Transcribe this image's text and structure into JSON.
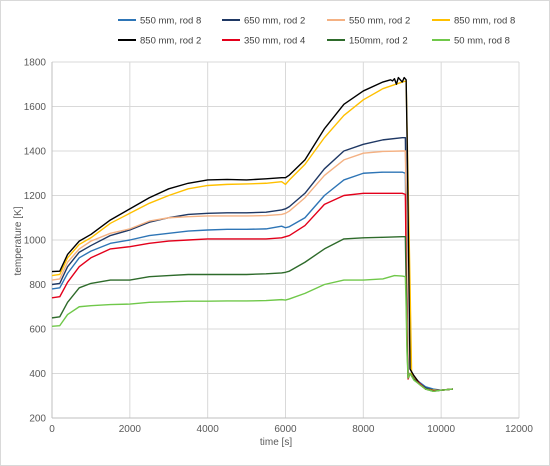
{
  "chart_data": {
    "type": "line",
    "title": "",
    "xlabel": "time [s]",
    "ylabel": "temperature [K]",
    "xlim": [
      0,
      12000
    ],
    "ylim": [
      200,
      1800
    ],
    "x_ticks": [
      0,
      2000,
      4000,
      6000,
      8000,
      10000,
      12000
    ],
    "y_ticks": [
      200,
      400,
      600,
      800,
      1000,
      1200,
      1400,
      1600,
      1800
    ],
    "x_tick_labels": [
      "0",
      "2000",
      "4000",
      "6000",
      "8000",
      "10000",
      "12000"
    ],
    "y_tick_labels": [
      "200",
      "400",
      "600",
      "800",
      "1000",
      "1200",
      "1400",
      "1600",
      "1800"
    ],
    "grid": true,
    "legend_position": "top",
    "series": [
      {
        "name": "550 mm, rod 8",
        "color": "#2E75B6",
        "x": [
          0,
          200,
          400,
          700,
          1000,
          1500,
          2000,
          2500,
          3000,
          3500,
          4000,
          4500,
          5000,
          5500,
          5900,
          6000,
          6100,
          6500,
          7000,
          7500,
          8000,
          8500,
          9000,
          9080,
          9100,
          9120,
          9150,
          9200,
          9300,
          9450,
          9600,
          9800,
          10000,
          10300
        ],
        "y": [
          780,
          785,
          850,
          920,
          950,
          985,
          1000,
          1020,
          1030,
          1040,
          1045,
          1048,
          1048,
          1050,
          1062,
          1055,
          1060,
          1100,
          1200,
          1270,
          1300,
          1305,
          1305,
          1300,
          1000,
          700,
          380,
          400,
          380,
          360,
          340,
          330,
          325,
          330
        ]
      },
      {
        "name": "650 mm, rod 2",
        "color": "#1F3864",
        "x": [
          0,
          200,
          400,
          700,
          1000,
          1500,
          2000,
          2500,
          3000,
          3500,
          4000,
          4500,
          5000,
          5500,
          5900,
          6000,
          6100,
          6500,
          7000,
          7500,
          8000,
          8500,
          9000,
          9080,
          9100,
          9120,
          9150,
          9200,
          9300,
          9450,
          9600,
          9800,
          10000,
          10300
        ],
        "y": [
          800,
          805,
          880,
          945,
          975,
          1020,
          1045,
          1080,
          1100,
          1115,
          1120,
          1122,
          1122,
          1125,
          1135,
          1140,
          1150,
          1210,
          1320,
          1400,
          1430,
          1450,
          1460,
          1460,
          1200,
          800,
          390,
          400,
          380,
          355,
          335,
          325,
          325,
          330
        ]
      },
      {
        "name": "550 mm, rod 2",
        "color": "#F4B183",
        "x": [
          0,
          200,
          400,
          700,
          1000,
          1500,
          2000,
          2500,
          3000,
          3500,
          4000,
          4500,
          5000,
          5500,
          5900,
          6000,
          6100,
          6500,
          7000,
          7500,
          8000,
          8500,
          9000,
          9080,
          9100,
          9120,
          9150,
          9200,
          9300,
          9450,
          9600,
          9800,
          10000,
          10300
        ],
        "y": [
          820,
          825,
          900,
          960,
          995,
          1030,
          1050,
          1085,
          1100,
          1105,
          1108,
          1108,
          1108,
          1110,
          1115,
          1120,
          1130,
          1190,
          1290,
          1360,
          1390,
          1398,
          1400,
          1400,
          1150,
          750,
          385,
          400,
          380,
          355,
          330,
          322,
          325,
          330
        ]
      },
      {
        "name": "850 mm, rod 8",
        "color": "#FFC000",
        "x": [
          0,
          200,
          400,
          700,
          1000,
          1500,
          2000,
          2500,
          3000,
          3500,
          4000,
          4500,
          5000,
          5500,
          5900,
          6000,
          6100,
          6500,
          7000,
          7500,
          8000,
          8500,
          9000,
          9100,
          9200,
          9240,
          9300,
          9450,
          9600,
          9800,
          10000,
          10300
        ],
        "y": [
          840,
          845,
          920,
          980,
          1010,
          1075,
          1120,
          1165,
          1200,
          1230,
          1245,
          1250,
          1252,
          1255,
          1262,
          1250,
          1270,
          1340,
          1460,
          1560,
          1630,
          1680,
          1710,
          1715,
          800,
          400,
          390,
          350,
          330,
          325,
          325,
          330
        ]
      },
      {
        "name": "850 mm, rod 2",
        "color": "#000000",
        "x": [
          0,
          200,
          400,
          700,
          1000,
          1500,
          2000,
          2500,
          3000,
          3500,
          4000,
          4500,
          5000,
          5500,
          5900,
          6000,
          6100,
          6500,
          7000,
          7500,
          8000,
          8500,
          8700,
          8750,
          8800,
          8850,
          8900,
          8950,
          9000,
          9050,
          9100,
          9130,
          9200,
          9300,
          9450,
          9600,
          9800,
          10000,
          10300
        ],
        "y": [
          858,
          860,
          935,
          995,
          1025,
          1090,
          1140,
          1190,
          1230,
          1255,
          1270,
          1272,
          1270,
          1275,
          1280,
          1280,
          1292,
          1360,
          1500,
          1610,
          1670,
          1710,
          1720,
          1715,
          1725,
          1700,
          1730,
          1720,
          1710,
          1730,
          1720,
          1400,
          420,
          390,
          355,
          330,
          322,
          325,
          330
        ]
      },
      {
        "name": "350 mm, rod 4",
        "color": "#E3001B",
        "x": [
          0,
          200,
          400,
          700,
          1000,
          1500,
          2000,
          2500,
          3000,
          3500,
          4000,
          4500,
          5000,
          5500,
          5900,
          6000,
          6100,
          6500,
          7000,
          7500,
          8000,
          8500,
          9000,
          9080,
          9100,
          9120,
          9150,
          9200,
          9300,
          9450,
          9600,
          9800,
          10000,
          10300
        ],
        "y": [
          740,
          745,
          810,
          880,
          920,
          960,
          970,
          985,
          995,
          1000,
          1005,
          1005,
          1005,
          1005,
          1010,
          1015,
          1020,
          1065,
          1160,
          1200,
          1210,
          1210,
          1210,
          1205,
          900,
          600,
          375,
          400,
          375,
          355,
          330,
          322,
          325,
          330
        ]
      },
      {
        "name": "150mm, rod 2",
        "color": "#2E6B2B",
        "x": [
          0,
          200,
          400,
          700,
          1000,
          1500,
          2000,
          2500,
          3000,
          3500,
          4000,
          4500,
          5000,
          5500,
          5900,
          6000,
          6100,
          6500,
          7000,
          7500,
          8000,
          8500,
          9000,
          9080,
          9100,
          9120,
          9150,
          9200,
          9300,
          9450,
          9600,
          9800,
          10000,
          10300
        ],
        "y": [
          650,
          655,
          720,
          785,
          805,
          820,
          820,
          835,
          840,
          845,
          845,
          845,
          845,
          848,
          852,
          855,
          860,
          900,
          960,
          1005,
          1010,
          1012,
          1015,
          1015,
          800,
          550,
          380,
          400,
          375,
          350,
          330,
          320,
          325,
          330
        ]
      },
      {
        "name": "50 mm, rod 8",
        "color": "#70C84A",
        "x": [
          0,
          200,
          400,
          700,
          1000,
          1500,
          2000,
          2500,
          3000,
          3500,
          4000,
          4500,
          5000,
          5500,
          5900,
          6000,
          6100,
          6500,
          7000,
          7500,
          8000,
          8500,
          8800,
          9000,
          9080,
          9100,
          9120,
          9150,
          9200,
          9300,
          9450,
          9600,
          9800,
          10000,
          10300
        ],
        "y": [
          612,
          615,
          665,
          700,
          705,
          710,
          712,
          720,
          722,
          725,
          725,
          726,
          726,
          728,
          732,
          730,
          735,
          760,
          800,
          820,
          820,
          825,
          840,
          838,
          835,
          700,
          500,
          380,
          400,
          370,
          350,
          330,
          320,
          325,
          330
        ]
      }
    ]
  }
}
